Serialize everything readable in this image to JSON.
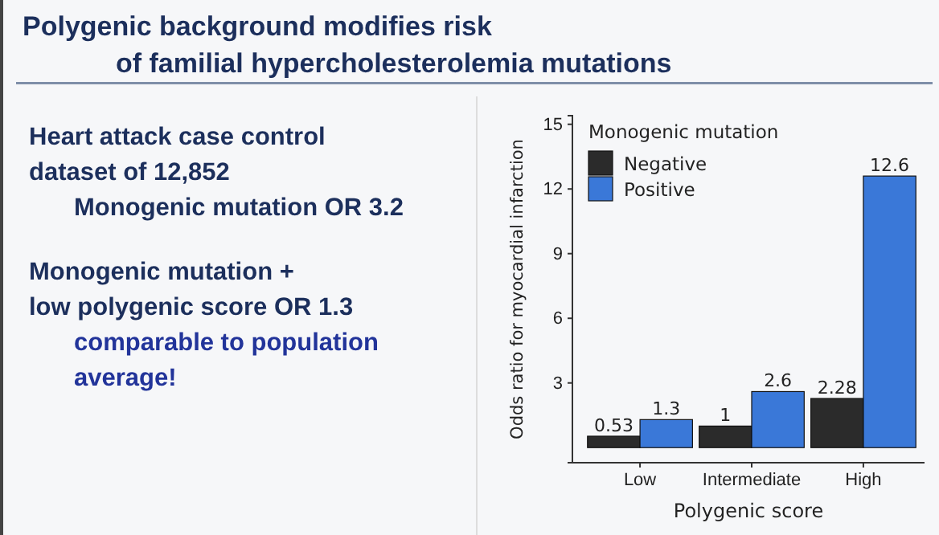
{
  "chart_data": {
    "type": "bar",
    "title": "Polygenic background modifies risk\nof familial hypercholesterolemia mutations",
    "annotations": [
      "Heart attack case control",
      "dataset of 12,852",
      "Monogenic mutation OR 3.2",
      "Monogenic mutation +",
      "low polygenic score OR 1.3",
      "comparable to population",
      "average!"
    ],
    "categories": [
      "Low",
      "Intermediate",
      "High"
    ],
    "series": [
      {
        "name": "Negative",
        "color": "#2b2b2b",
        "values": [
          0.53,
          1,
          2.28
        ]
      },
      {
        "name": "Positive",
        "color": "#3a78d8",
        "values": [
          1.3,
          2.6,
          12.6
        ]
      }
    ],
    "xlabel": "Polygenic score",
    "ylabel": "Odds ratio for myocardial infarction",
    "legend_title": "Monogenic mutation",
    "ylim": [
      -0.7,
      15.4
    ],
    "yticks": [
      3,
      6,
      9,
      12,
      15
    ],
    "legend": "top left",
    "data_labels": true,
    "grid": false
  }
}
